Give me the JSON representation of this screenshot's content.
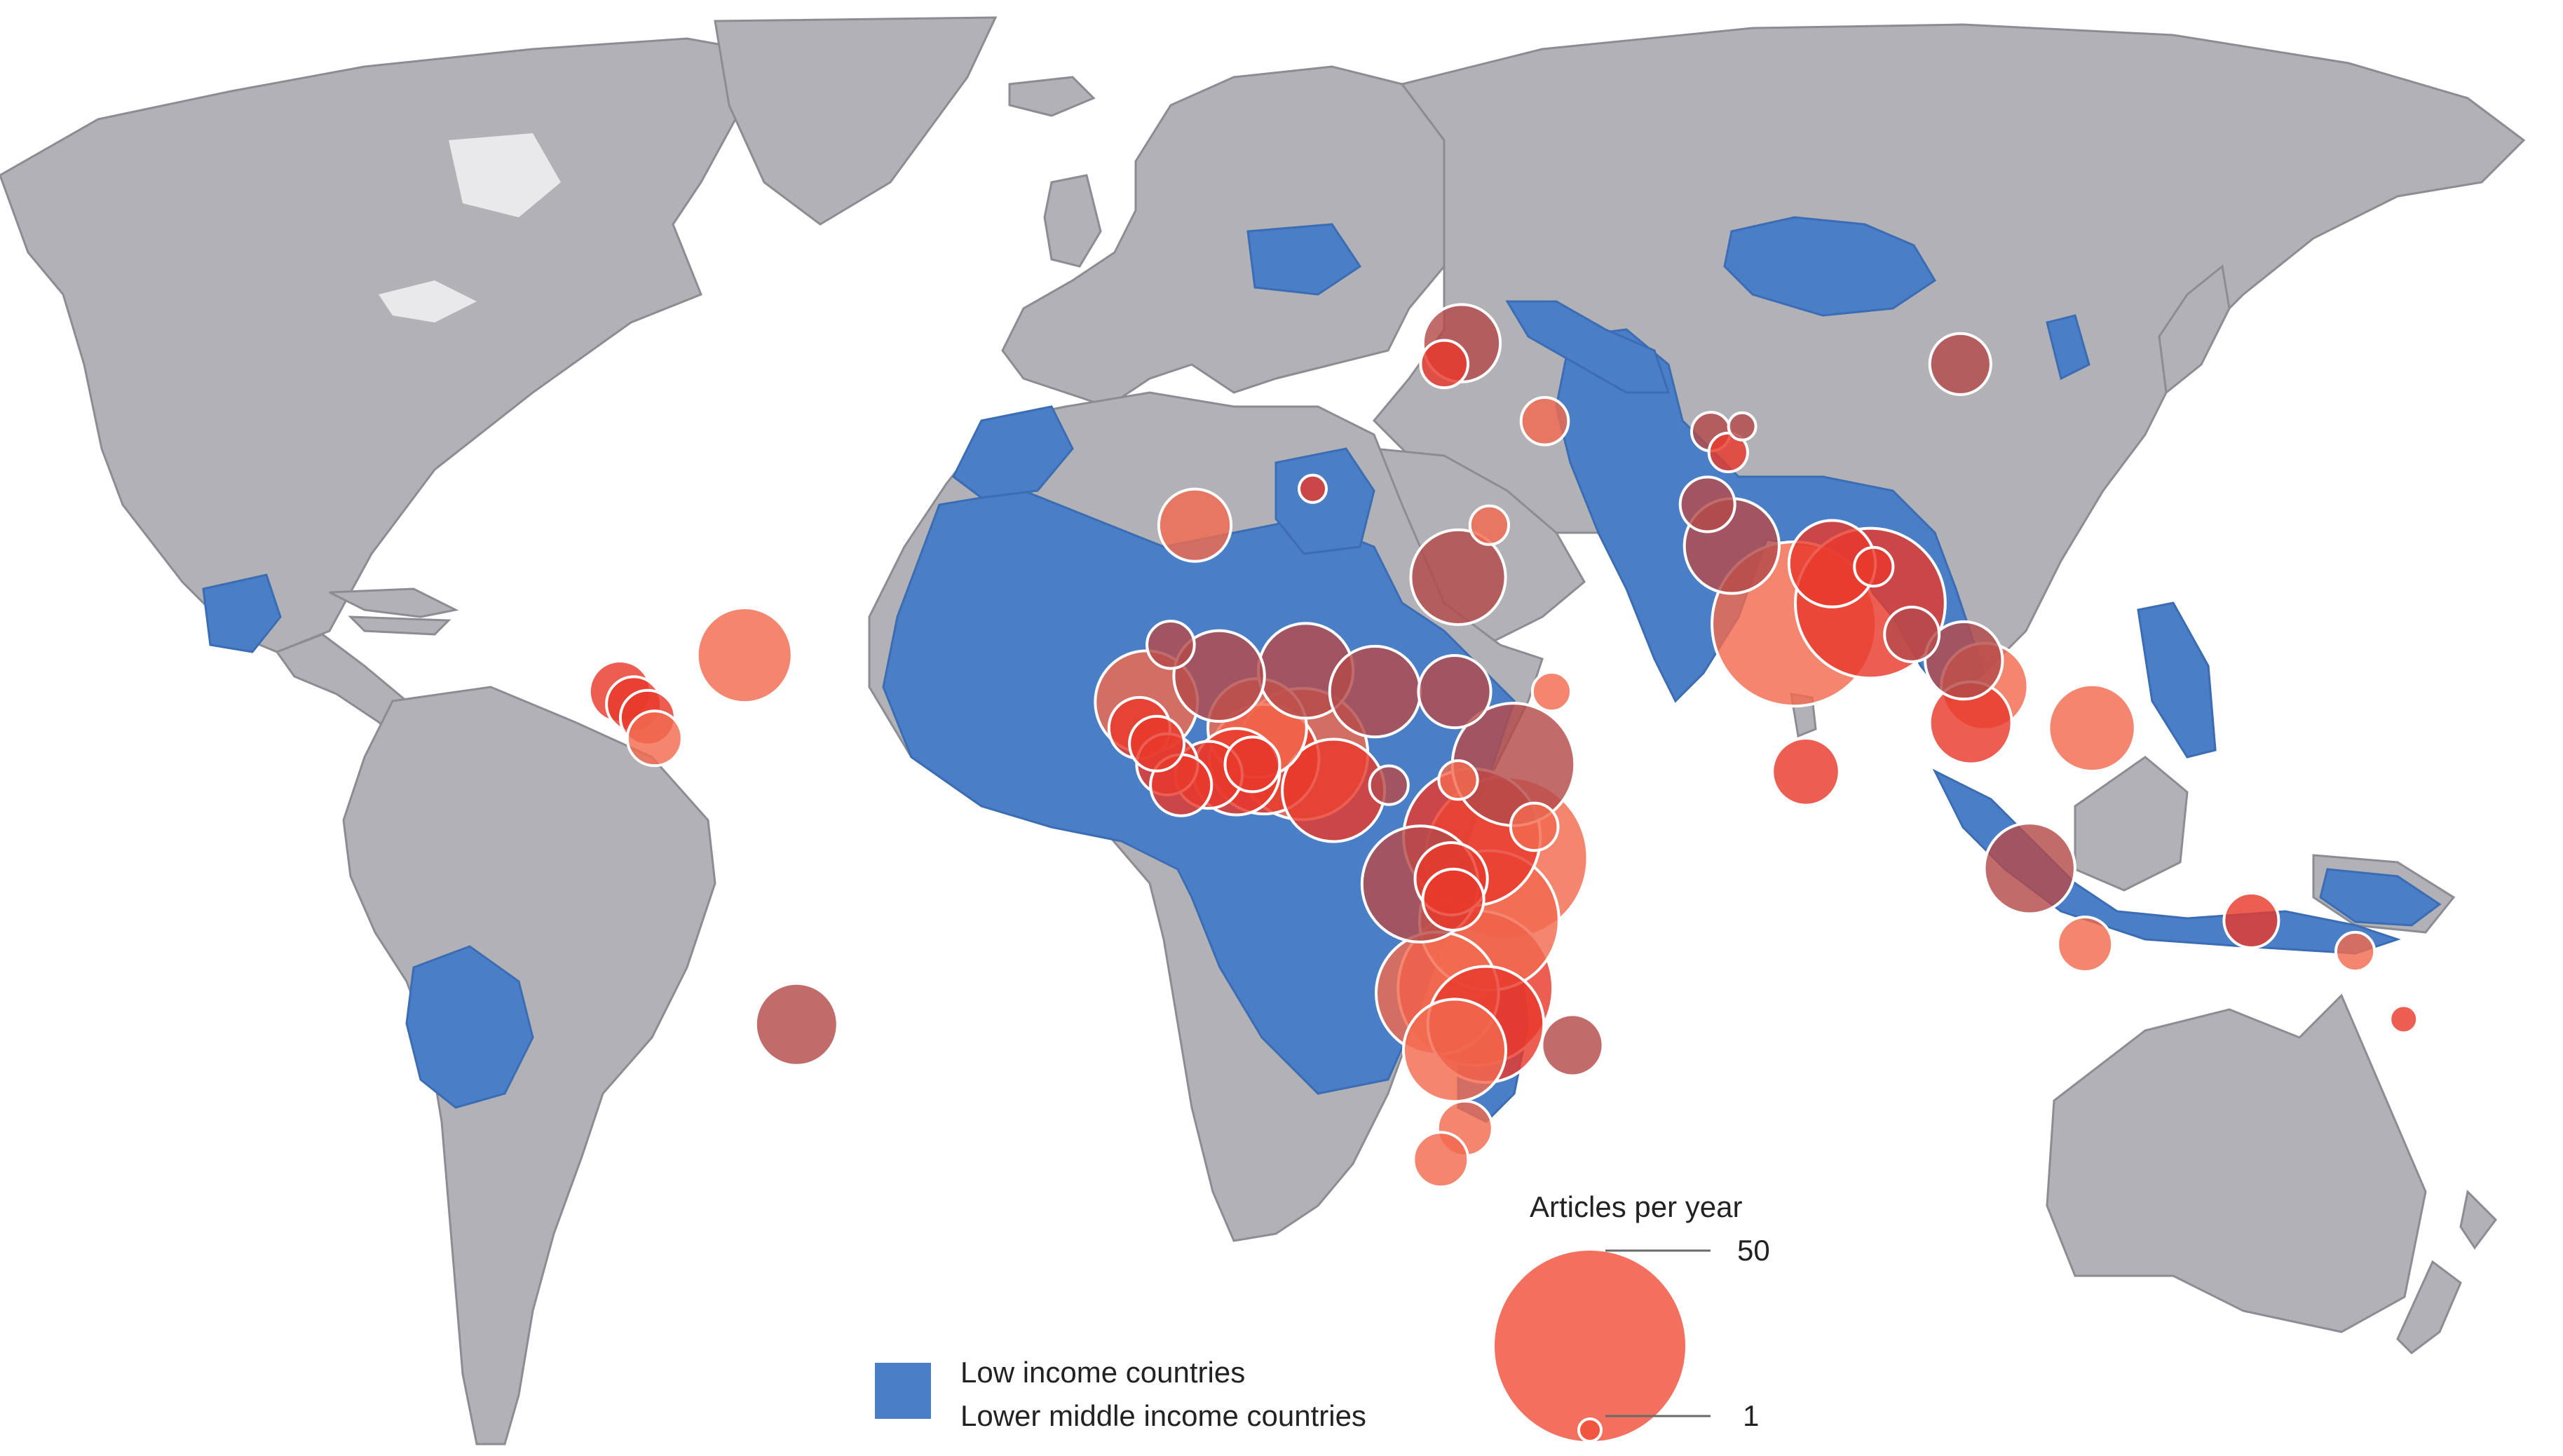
{
  "legend": {
    "size_title": "Articles per year",
    "size_max_label": "50",
    "size_min_label": "1",
    "size_max_value": 50,
    "size_min_value": 1,
    "low_income_label": "Low income countries",
    "lower_middle_label": "Lower middle income countries",
    "low_income_color": "#4a7fc8",
    "lower_middle_color": "#4a7fc8",
    "bubble_color": "#f0503a",
    "land_color": "#b1b1b6"
  },
  "map_data": {
    "type": "proportional-symbol-map",
    "markers": [
      {
        "lon": -72.5,
        "lat": 19.0,
        "articles": 12,
        "color": "#f26a4f"
      },
      {
        "lon": -90.5,
        "lat": 15.5,
        "articles": 5,
        "color": "#e8392c"
      },
      {
        "lon": -88.5,
        "lat": 14.3,
        "articles": 4,
        "color": "#e8392c"
      },
      {
        "lon": -86.5,
        "lat": 13.0,
        "articles": 4,
        "color": "#e8392c"
      },
      {
        "lon": -85.5,
        "lat": 11.0,
        "articles": 4,
        "color": "#f26a4f"
      },
      {
        "lon": -65.0,
        "lat": -16.5,
        "articles": 9,
        "color": "#b54a4a"
      },
      {
        "lon": -7.5,
        "lat": 31.5,
        "articles": 7,
        "color": "#f26a4f"
      },
      {
        "lon": 9.5,
        "lat": 35.0,
        "articles": 1,
        "color": "#e8392c"
      },
      {
        "lon": 30.5,
        "lat": 26.5,
        "articles": 12,
        "color": "#b54a4a"
      },
      {
        "lon": 35.0,
        "lat": 31.5,
        "articles": 2,
        "color": "#f26a4f"
      },
      {
        "lon": 43.0,
        "lat": 41.5,
        "articles": 3,
        "color": "#f26a4f"
      },
      {
        "lon": 31.0,
        "lat": 49.0,
        "articles": 8,
        "color": "#b54a4a"
      },
      {
        "lon": 28.5,
        "lat": 47.0,
        "articles": 3,
        "color": "#e8392c"
      },
      {
        "lon": 67.0,
        "lat": 40.5,
        "articles": 2,
        "color": "#b54a4a"
      },
      {
        "lon": 71.5,
        "lat": 41.0,
        "articles": 1,
        "color": "#b54a4a"
      },
      {
        "lon": 69.5,
        "lat": 38.5,
        "articles": 2,
        "color": "#e8392c"
      },
      {
        "lon": 66.5,
        "lat": 33.5,
        "articles": 4,
        "color": "#b54a4a"
      },
      {
        "lon": 70.0,
        "lat": 29.5,
        "articles": 12,
        "color": "#b54a4a"
      },
      {
        "lon": 79.0,
        "lat": 22.0,
        "articles": 36,
        "color": "#f26a4f"
      },
      {
        "lon": 84.5,
        "lat": 27.8,
        "articles": 10,
        "color": "#e8392c"
      },
      {
        "lon": 90.0,
        "lat": 24.0,
        "articles": 30,
        "color": "#e8392c"
      },
      {
        "lon": 90.5,
        "lat": 27.5,
        "articles": 2,
        "color": "#e8392c"
      },
      {
        "lon": 96.0,
        "lat": 21.0,
        "articles": 4,
        "color": "#b54a4a"
      },
      {
        "lon": 103.0,
        "lat": 47.0,
        "articles": 5,
        "color": "#b54a4a"
      },
      {
        "lon": 103.5,
        "lat": 18.5,
        "articles": 8,
        "color": "#b54a4a"
      },
      {
        "lon": 106.5,
        "lat": 16.0,
        "articles": 10,
        "color": "#f26a4f"
      },
      {
        "lon": 104.5,
        "lat": 12.5,
        "articles": 9,
        "color": "#e8392c"
      },
      {
        "lon": 122.0,
        "lat": 12.0,
        "articles": 10,
        "color": "#f26a4f"
      },
      {
        "lon": 80.7,
        "lat": 7.8,
        "articles": 6,
        "color": "#e8392c"
      },
      {
        "lon": 113.0,
        "lat": -1.5,
        "articles": 11,
        "color": "#b54a4a"
      },
      {
        "lon": 121.0,
        "lat": -8.8,
        "articles": 4,
        "color": "#f26a4f"
      },
      {
        "lon": 145.0,
        "lat": -6.5,
        "articles": 4,
        "color": "#e8392c"
      },
      {
        "lon": 160.0,
        "lat": -9.5,
        "articles": 2,
        "color": "#f26a4f"
      },
      {
        "lon": 167.0,
        "lat": -16.0,
        "articles": 1,
        "color": "#e8392c"
      },
      {
        "lon": -11.0,
        "lat": 20.0,
        "articles": 3,
        "color": "#b54a4a"
      },
      {
        "lon": -4.0,
        "lat": 17.0,
        "articles": 11,
        "color": "#b54a4a"
      },
      {
        "lon": 8.5,
        "lat": 17.5,
        "articles": 12,
        "color": "#b54a4a"
      },
      {
        "lon": 18.5,
        "lat": 15.5,
        "articles": 11,
        "color": "#b54a4a"
      },
      {
        "lon": 30.0,
        "lat": 15.5,
        "articles": 7,
        "color": "#b54a4a"
      },
      {
        "lon": 44.0,
        "lat": 15.5,
        "articles": 2,
        "color": "#f26a4f"
      },
      {
        "lon": -14.5,
        "lat": 14.5,
        "articles": 14,
        "color": "#f26a4f"
      },
      {
        "lon": -15.5,
        "lat": 12.0,
        "articles": 5,
        "color": "#e8392c"
      },
      {
        "lon": -13.0,
        "lat": 10.5,
        "articles": 4,
        "color": "#e8392c"
      },
      {
        "lon": -11.5,
        "lat": 8.5,
        "articles": 5,
        "color": "#e8392c"
      },
      {
        "lon": -9.5,
        "lat": 6.5,
        "articles": 5,
        "color": "#e8392c"
      },
      {
        "lon": -5.5,
        "lat": 7.5,
        "articles": 6,
        "color": "#e8392c"
      },
      {
        "lon": -1.5,
        "lat": 7.8,
        "articles": 10,
        "color": "#e8392c"
      },
      {
        "lon": 0.8,
        "lat": 8.5,
        "articles": 4,
        "color": "#e8392c"
      },
      {
        "lon": 2.5,
        "lat": 9.0,
        "articles": 16,
        "color": "#e8392c"
      },
      {
        "lon": 1.5,
        "lat": 12.0,
        "articles": 13,
        "color": "#f26a4f"
      },
      {
        "lon": 8.0,
        "lat": 9.5,
        "articles": 23,
        "color": "#f26a4f"
      },
      {
        "lon": 12.5,
        "lat": 6.0,
        "articles": 14,
        "color": "#e8392c"
      },
      {
        "lon": 20.5,
        "lat": 6.5,
        "articles": 2,
        "color": "#b54a4a"
      },
      {
        "lon": 30.5,
        "lat": 7.0,
        "articles": 2,
        "color": "#f26a4f"
      },
      {
        "lon": 38.5,
        "lat": 8.5,
        "articles": 20,
        "color": "#b54a4a"
      },
      {
        "lon": 41.5,
        "lat": 2.5,
        "articles": 3,
        "color": "#f26a4f"
      },
      {
        "lon": 25.0,
        "lat": -3.0,
        "articles": 18,
        "color": "#b54a4a"
      },
      {
        "lon": 32.5,
        "lat": 1.5,
        "articles": 25,
        "color": "#e8392c"
      },
      {
        "lon": 37.5,
        "lat": -0.5,
        "articles": 35,
        "color": "#f26a4f"
      },
      {
        "lon": 29.5,
        "lat": -2.5,
        "articles": 7,
        "color": "#e8392c"
      },
      {
        "lon": 29.8,
        "lat": -4.5,
        "articles": 5,
        "color": "#e8392c"
      },
      {
        "lon": 35.0,
        "lat": -6.5,
        "articles": 26,
        "color": "#f26a4f"
      },
      {
        "lon": 27.5,
        "lat": -13.5,
        "articles": 20,
        "color": "#f26a4f"
      },
      {
        "lon": 33.0,
        "lat": -13.0,
        "articles": 32,
        "color": "#e8392c"
      },
      {
        "lon": 34.5,
        "lat": -16.5,
        "articles": 18,
        "color": "#e8392c"
      },
      {
        "lon": 30.0,
        "lat": -19.0,
        "articles": 14,
        "color": "#f26a4f"
      },
      {
        "lon": 47.0,
        "lat": -18.5,
        "articles": 5,
        "color": "#b54a4a"
      },
      {
        "lon": 31.5,
        "lat": -26.5,
        "articles": 4,
        "color": "#f26a4f"
      },
      {
        "lon": 28.0,
        "lat": -29.5,
        "articles": 4,
        "color": "#f26a4f"
      }
    ]
  }
}
